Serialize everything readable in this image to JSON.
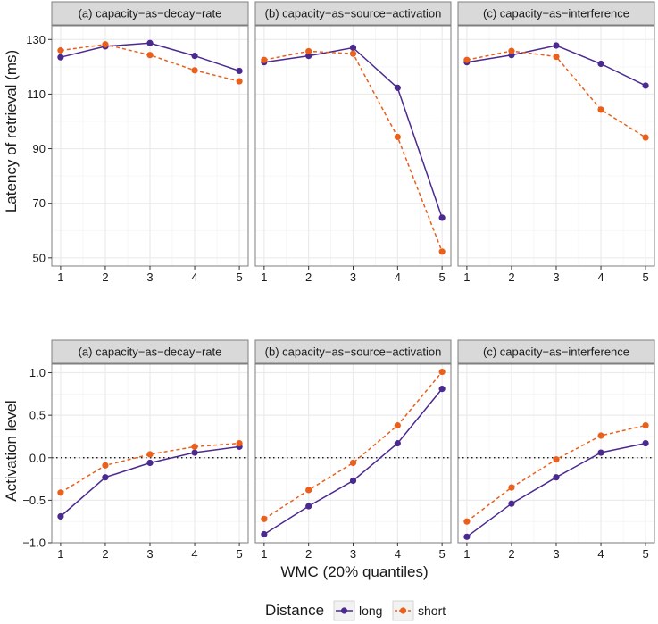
{
  "chart_data": [
    {
      "type": "line",
      "row": "top",
      "ylabel": "Latency of retrieval (ms)",
      "xlabel": "",
      "ylim": [
        47,
        135
      ],
      "yticks": [
        50,
        70,
        90,
        110,
        130
      ],
      "x": [
        1,
        2,
        3,
        4,
        5
      ],
      "reference_line": null,
      "panels": [
        {
          "title": "(a) capacity−as−decay−rate",
          "series": [
            {
              "name": "long",
              "values": [
                123.5,
                127.5,
                128.7,
                124.0,
                118.5
              ]
            },
            {
              "name": "short",
              "values": [
                126.0,
                128.2,
                124.3,
                118.7,
                114.7
              ]
            }
          ]
        },
        {
          "title": "(b) capacity−as−source−activation",
          "series": [
            {
              "name": "long",
              "values": [
                121.7,
                124.0,
                127.0,
                112.3,
                64.7
              ]
            },
            {
              "name": "short",
              "values": [
                122.5,
                125.7,
                124.8,
                94.3,
                52.3
              ]
            }
          ]
        },
        {
          "title": "(c) capacity−as−interference",
          "series": [
            {
              "name": "long",
              "values": [
                121.7,
                124.3,
                127.8,
                121.1,
                113.1
              ]
            },
            {
              "name": "short",
              "values": [
                122.5,
                125.8,
                123.7,
                104.3,
                94.1
              ]
            }
          ]
        }
      ]
    },
    {
      "type": "line",
      "row": "bottom",
      "ylabel": "Activation level",
      "xlabel": "WMC (20% quantiles)",
      "ylim": [
        -1.0,
        1.1
      ],
      "yticks": [
        -1.0,
        -0.5,
        0.0,
        0.5,
        1.0
      ],
      "ytick_labels": [
        "−1.0",
        "−0.5",
        "0.0",
        "0.5",
        "1.0"
      ],
      "x": [
        1,
        2,
        3,
        4,
        5
      ],
      "reference_line": 0.0,
      "panels": [
        {
          "title": "(a) capacity−as−decay−rate",
          "series": [
            {
              "name": "long",
              "values": [
                -0.69,
                -0.23,
                -0.06,
                0.06,
                0.13
              ]
            },
            {
              "name": "short",
              "values": [
                -0.41,
                -0.09,
                0.04,
                0.13,
                0.17
              ]
            }
          ]
        },
        {
          "title": "(b) capacity−as−source−activation",
          "series": [
            {
              "name": "long",
              "values": [
                -0.9,
                -0.57,
                -0.27,
                0.17,
                0.81
              ]
            },
            {
              "name": "short",
              "values": [
                -0.72,
                -0.38,
                -0.06,
                0.38,
                1.01
              ]
            }
          ]
        },
        {
          "title": "(c) capacity−as−interference",
          "series": [
            {
              "name": "long",
              "values": [
                -0.93,
                -0.54,
                -0.23,
                0.06,
                0.17
              ]
            },
            {
              "name": "short",
              "values": [
                -0.75,
                -0.35,
                -0.02,
                0.26,
                0.38
              ]
            }
          ]
        }
      ]
    }
  ],
  "legend": {
    "title": "Distance",
    "entries": [
      {
        "name": "long",
        "color": "#4b2a8f",
        "dash": "solid"
      },
      {
        "name": "short",
        "color": "#e8601c",
        "dash": "dashed"
      }
    ]
  },
  "colors": {
    "long": "#4b2a8f",
    "short": "#e8601c",
    "strip_fill": "#d9d9d9",
    "panel_border": "#7f7f7f",
    "grid": "#ebebeb"
  }
}
